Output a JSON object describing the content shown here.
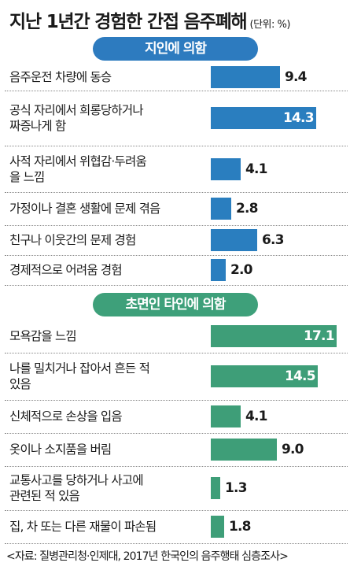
{
  "header": {
    "title": "지난 1년간 경험한 간접 음주폐해",
    "unit": "(단위: %)"
  },
  "chart_data": [
    {
      "type": "bar",
      "orientation": "horizontal",
      "group_label": "지인에 의함",
      "color": "#2a7ebf",
      "categories": [
        "음주운전 차량에 동승",
        "공식 자리에서 희롱당하거나\n짜증나게 함",
        "사적 자리에서 위협감·두려움\n을 느낌",
        "가정이나 결혼 생활에 문제 겪음",
        "친구나 이웃간의 문제 경험",
        "경제적으로 어려움 경험"
      ],
      "values": [
        9.4,
        14.3,
        4.1,
        2.8,
        6.3,
        2.0
      ],
      "value_labels": [
        "9.4",
        "14.3",
        "4.1",
        "2.8",
        "6.3",
        "2.0"
      ]
    },
    {
      "type": "bar",
      "orientation": "horizontal",
      "group_label": "초면인 타인에 의함",
      "color": "#3e9e78",
      "categories": [
        "모욕감을 느낌",
        "나를 밀치거나 잡아서 흔든 적\n있음",
        "신체적으로 손상을 입음",
        "옷이나 소지품을 버림",
        "교통사고를 당하거나 사고에\n관련된 적 있음",
        "집, 차 또는 다른 재물이 파손됨"
      ],
      "values": [
        17.1,
        14.5,
        4.1,
        9.0,
        1.3,
        1.8
      ],
      "value_labels": [
        "17.1",
        "14.5",
        "4.1",
        "9.0",
        "1.3",
        "1.8"
      ]
    }
  ],
  "footer": {
    "source": "<자료: 질병관리청·인제대, 2017년 한국인의 음주행태 심층조사>"
  }
}
